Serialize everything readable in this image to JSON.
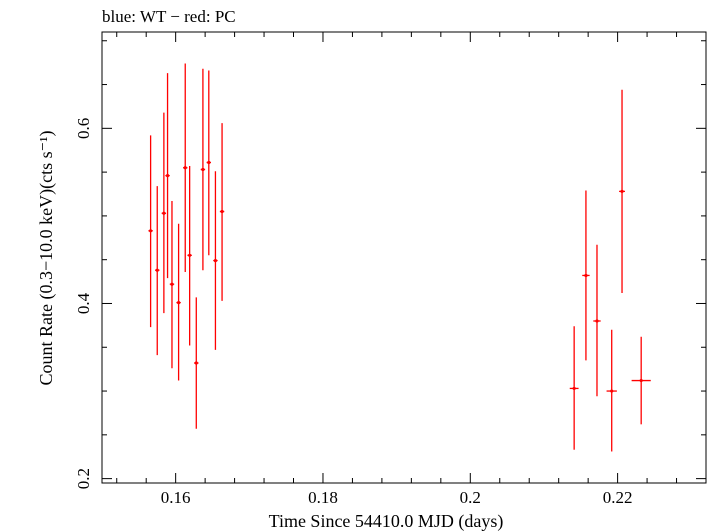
{
  "chart_data": {
    "type": "scatter",
    "title": "blue: WT − red: PC",
    "xlabel": "Time Since 54410.0 MJD (days)",
    "ylabel": "Count Rate (0.3−10.0 keV)(cts s⁻¹)",
    "xlim": [
      0.15,
      0.232
    ],
    "ylim": [
      0.195,
      0.71
    ],
    "x_ticks": [
      0.16,
      0.18,
      0.2,
      0.22
    ],
    "x_tick_labels": [
      "0.16",
      "0.18",
      "0.2",
      "0.22"
    ],
    "y_ticks": [
      0.2,
      0.4,
      0.6
    ],
    "y_tick_labels": [
      "0.2",
      "0.4",
      "0.6"
    ],
    "grid": false,
    "series": [
      {
        "color": "#ff0000",
        "points": [
          {
            "x": 0.1566,
            "y": 0.483,
            "y_lo": 0.373,
            "y_hi": 0.592,
            "x_err": 0.0003
          },
          {
            "x": 0.1575,
            "y": 0.438,
            "y_lo": 0.341,
            "y_hi": 0.534,
            "x_err": 0.0003
          },
          {
            "x": 0.1584,
            "y": 0.503,
            "y_lo": 0.389,
            "y_hi": 0.618,
            "x_err": 0.0003
          },
          {
            "x": 0.1589,
            "y": 0.546,
            "y_lo": 0.429,
            "y_hi": 0.663,
            "x_err": 0.0003
          },
          {
            "x": 0.1595,
            "y": 0.422,
            "y_lo": 0.326,
            "y_hi": 0.517,
            "x_err": 0.0003
          },
          {
            "x": 0.1604,
            "y": 0.401,
            "y_lo": 0.312,
            "y_hi": 0.491,
            "x_err": 0.0003
          },
          {
            "x": 0.1613,
            "y": 0.555,
            "y_lo": 0.436,
            "y_hi": 0.674,
            "x_err": 0.0003
          },
          {
            "x": 0.1619,
            "y": 0.455,
            "y_lo": 0.352,
            "y_hi": 0.557,
            "x_err": 0.0003
          },
          {
            "x": 0.1628,
            "y": 0.332,
            "y_lo": 0.257,
            "y_hi": 0.407,
            "x_err": 0.0003
          },
          {
            "x": 0.1637,
            "y": 0.553,
            "y_lo": 0.438,
            "y_hi": 0.668,
            "x_err": 0.0003
          },
          {
            "x": 0.1645,
            "y": 0.561,
            "y_lo": 0.455,
            "y_hi": 0.666,
            "x_err": 0.0003
          },
          {
            "x": 0.1654,
            "y": 0.449,
            "y_lo": 0.347,
            "y_hi": 0.551,
            "x_err": 0.0003
          },
          {
            "x": 0.1663,
            "y": 0.505,
            "y_lo": 0.403,
            "y_hi": 0.606,
            "x_err": 0.0003
          },
          {
            "x": 0.2141,
            "y": 0.303,
            "y_lo": 0.233,
            "y_hi": 0.374,
            "x_err": 0.0006
          },
          {
            "x": 0.2157,
            "y": 0.432,
            "y_lo": 0.335,
            "y_hi": 0.529,
            "x_err": 0.0005
          },
          {
            "x": 0.2172,
            "y": 0.38,
            "y_lo": 0.294,
            "y_hi": 0.467,
            "x_err": 0.0005
          },
          {
            "x": 0.2192,
            "y": 0.3,
            "y_lo": 0.231,
            "y_hi": 0.37,
            "x_err": 0.0007
          },
          {
            "x": 0.2206,
            "y": 0.528,
            "y_lo": 0.412,
            "y_hi": 0.644,
            "x_err": 0.0004
          },
          {
            "x": 0.2232,
            "y": 0.312,
            "y_lo": 0.262,
            "y_hi": 0.362,
            "x_err": 0.0013
          }
        ]
      }
    ]
  }
}
